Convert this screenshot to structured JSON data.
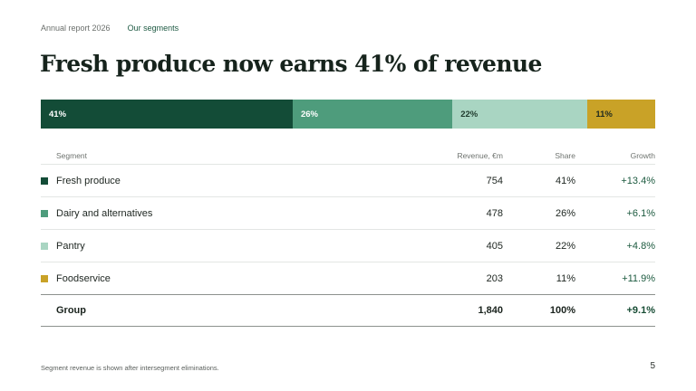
{
  "nav": {
    "report": "Annual report 2026",
    "section": "Our segments"
  },
  "title": "Fresh produce now earns 41% of revenue",
  "bar": [
    {
      "label": "41%",
      "share": 41,
      "color": "#134c37",
      "style": "dark"
    },
    {
      "label": "26%",
      "share": 26,
      "color": "#4e9c7c",
      "style": "dark"
    },
    {
      "label": "22%",
      "share": 22,
      "color": "#a9d5c2",
      "style": "light"
    },
    {
      "label": "11%",
      "share": 11,
      "color": "#c9a227",
      "style": "gold"
    }
  ],
  "table": {
    "headers": {
      "segment": "Segment",
      "revenue": "Revenue, €m",
      "share": "Share",
      "growth": "Growth"
    },
    "rows": [
      {
        "name": "Fresh produce",
        "revenue": "754",
        "share": "41%",
        "growth": "+13.4%",
        "color": "#134c37"
      },
      {
        "name": "Dairy and alternatives",
        "revenue": "478",
        "share": "26%",
        "growth": "+6.1%",
        "color": "#4e9c7c"
      },
      {
        "name": "Pantry",
        "revenue": "405",
        "share": "22%",
        "growth": "+4.8%",
        "color": "#a9d5c2"
      },
      {
        "name": "Foodservice",
        "revenue": "203",
        "share": "11%",
        "growth": "+11.9%",
        "color": "#c9a227"
      }
    ],
    "total": {
      "name": "Group",
      "revenue": "1,840",
      "share": "100%",
      "growth": "+9.1%"
    }
  },
  "footnote": "Segment revenue is shown after intersegment eliminations.",
  "page_number": "5"
}
